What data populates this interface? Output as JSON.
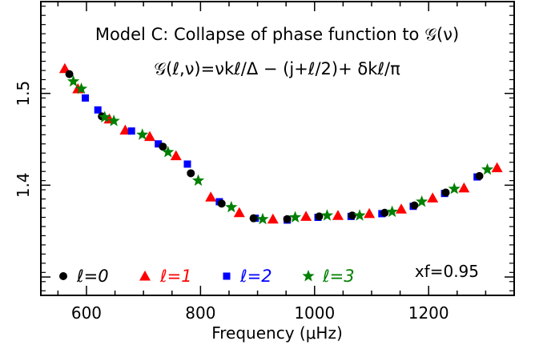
{
  "chart_data": {
    "type": "scatter",
    "title_lines": [
      "Model C:  Collapse of phase function to 𝒢(ν)",
      "𝒢(ℓ,ν)=νkℓ/Δ − (j+ℓ/2)+ δkℓ/π"
    ],
    "xlabel": "Frequency (μHz)",
    "ylabel": "",
    "xlim": [
      520,
      1350
    ],
    "ylim": [
      1.28,
      1.6
    ],
    "x_ticks": [
      600,
      800,
      1000,
      1200
    ],
    "y_ticks": [
      1.4,
      1.5
    ],
    "legend_position": "bottom",
    "annotation": "xf=0.95",
    "series": [
      {
        "name": "ℓ=0",
        "marker": "circle",
        "color": "#000000",
        "points": [
          [
            570,
            1.521
          ],
          [
            627,
            1.475
          ],
          [
            734,
            1.442
          ],
          [
            783,
            1.413
          ],
          [
            837,
            1.38
          ],
          [
            893,
            1.364
          ],
          [
            952,
            1.363
          ],
          [
            1008,
            1.366
          ],
          [
            1066,
            1.367
          ],
          [
            1123,
            1.37
          ],
          [
            1175,
            1.378
          ],
          [
            1230,
            1.392
          ],
          [
            1289,
            1.41
          ]
        ]
      },
      {
        "name": "ℓ=1",
        "marker": "triangle",
        "color": "#ff0000",
        "points": [
          [
            562,
            1.527
          ],
          [
            585,
            1.505
          ],
          [
            640,
            1.472
          ],
          [
            668,
            1.46
          ],
          [
            711,
            1.453
          ],
          [
            757,
            1.432
          ],
          [
            818,
            1.387
          ],
          [
            868,
            1.37
          ],
          [
            927,
            1.363
          ],
          [
            985,
            1.366
          ],
          [
            1041,
            1.367
          ],
          [
            1096,
            1.369
          ],
          [
            1152,
            1.374
          ],
          [
            1207,
            1.386
          ],
          [
            1262,
            1.397
          ],
          [
            1320,
            1.419
          ]
        ]
      },
      {
        "name": "ℓ=2",
        "marker": "square",
        "color": "#0000ff",
        "points": [
          [
            598,
            1.495
          ],
          [
            620,
            1.482
          ],
          [
            679,
            1.459
          ],
          [
            726,
            1.445
          ],
          [
            777,
            1.423
          ],
          [
            833,
            1.382
          ],
          [
            896,
            1.364
          ],
          [
            952,
            1.362
          ],
          [
            1006,
            1.365
          ],
          [
            1064,
            1.366
          ],
          [
            1118,
            1.369
          ],
          [
            1173,
            1.377
          ],
          [
            1228,
            1.391
          ],
          [
            1285,
            1.409
          ]
        ]
      },
      {
        "name": "ℓ=3",
        "marker": "star",
        "color": "#008000",
        "points": [
          [
            577,
            1.513
          ],
          [
            591,
            1.505
          ],
          [
            632,
            1.474
          ],
          [
            648,
            1.47
          ],
          [
            698,
            1.455
          ],
          [
            743,
            1.436
          ],
          [
            796,
            1.405
          ],
          [
            854,
            1.376
          ],
          [
            909,
            1.363
          ],
          [
            966,
            1.365
          ],
          [
            1022,
            1.367
          ],
          [
            1079,
            1.367
          ],
          [
            1136,
            1.371
          ],
          [
            1188,
            1.382
          ],
          [
            1245,
            1.396
          ],
          [
            1303,
            1.417
          ]
        ]
      }
    ]
  }
}
